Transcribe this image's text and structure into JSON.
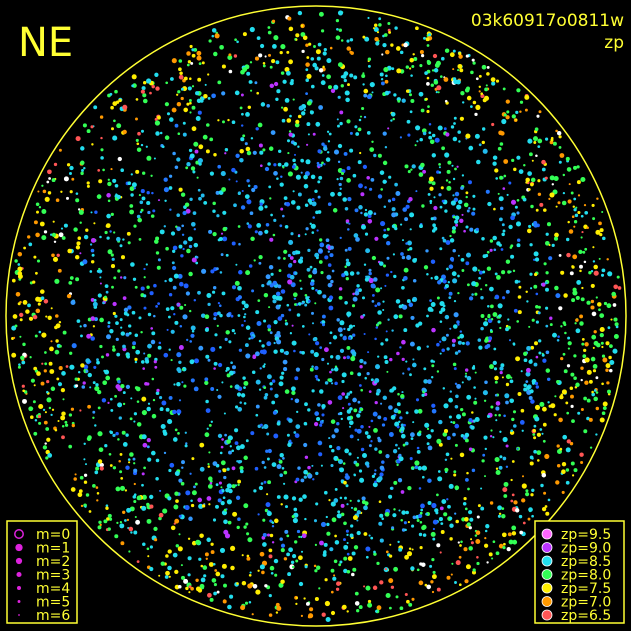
{
  "header": {
    "label": "NE",
    "image_id": "03k60917o0811w",
    "mode": "zp"
  },
  "magnitude_legend": {
    "items": [
      "m=0",
      "m=1",
      "m=2",
      "m=3",
      "m=4",
      "m=5",
      "m=6"
    ],
    "color": "#dd22dd"
  },
  "zp_legend": {
    "items": [
      {
        "label": "zp=9.5",
        "color": "#ff66ff"
      },
      {
        "label": "zp=9.0",
        "color": "#bb33ff"
      },
      {
        "label": "zp=8.5",
        "color": "#22ddee"
      },
      {
        "label": "zp=8.0",
        "color": "#33ff55"
      },
      {
        "label": "zp=7.5",
        "color": "#ffee00"
      },
      {
        "label": "zp=7.0",
        "color": "#ff9900"
      },
      {
        "label": "zp=6.5",
        "color": "#ff5555"
      }
    ]
  }
}
